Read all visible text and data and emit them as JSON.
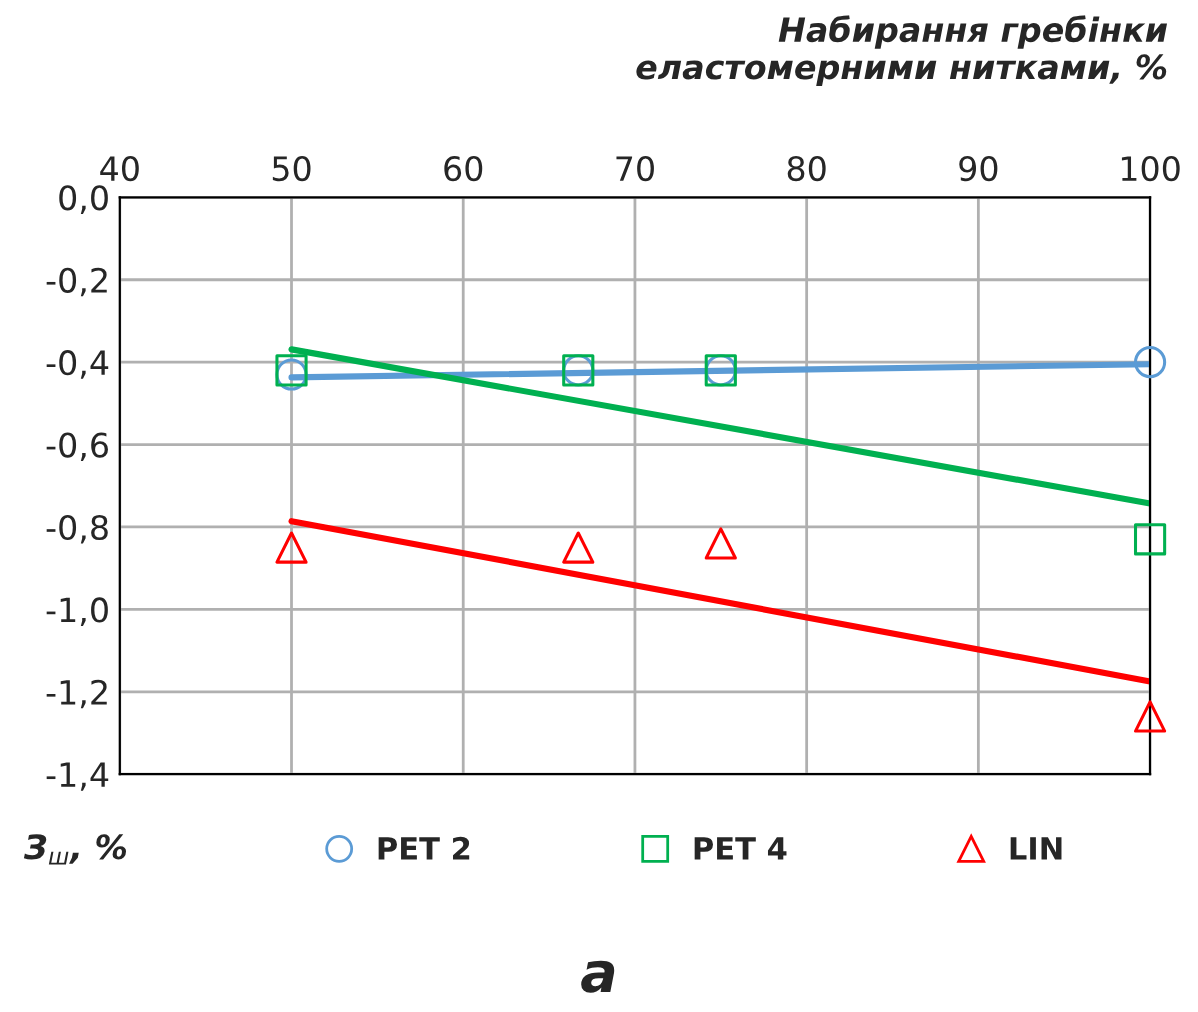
{
  "chart_data": {
    "type": "scatter",
    "xlabel": "Набирання гребінки\nеластомерними нитками, %",
    "ylabel": "З$_{ш}$, %",
    "xlim": [
      40,
      100
    ],
    "xticks": [
      40,
      50,
      60,
      70,
      80,
      90,
      100
    ],
    "ylim": [
      -1.4,
      0
    ],
    "yticks": [
      {
        "value": 0,
        "label": "0,0"
      },
      {
        "value": -0.2,
        "label": "-0,2"
      },
      {
        "value": -0.4,
        "label": "-0,4"
      },
      {
        "value": -0.6,
        "label": "-0,6"
      },
      {
        "value": -0.8,
        "label": "-0,8"
      },
      {
        "value": -1.0,
        "label": "-1,0"
      },
      {
        "value": -1.2,
        "label": "-1,2"
      },
      {
        "value": -1.4,
        "label": "-1,4"
      }
    ],
    "grid": true,
    "legend": "bottom",
    "annotations": [
      "а"
    ],
    "series": [
      {
        "name": "PET 2",
        "marker": "circle",
        "color": "#5b9bd5",
        "x": [
          50,
          66.7,
          75,
          100
        ],
        "values": [
          -0.43,
          -0.42,
          -0.42,
          -0.4
        ]
      },
      {
        "name": "PET 4",
        "marker": "square",
        "color": "#00b050",
        "x": [
          50,
          66.7,
          75,
          100
        ],
        "values": [
          -0.42,
          -0.42,
          -0.42,
          -0.83
        ]
      },
      {
        "name": "LIN",
        "marker": "triangle",
        "color": "#ff0000",
        "x": [
          50,
          66.7,
          75,
          100
        ],
        "values": [
          -0.85,
          -0.85,
          -0.84,
          -1.26
        ]
      },
      {
        "type": "line",
        "color": "#5b9bd5",
        "x": [
          50,
          100
        ],
        "values": [
          -0.437,
          -0.405
        ]
      },
      {
        "type": "line",
        "color": "#00b050",
        "x": [
          50,
          100
        ],
        "values": [
          -0.369,
          -0.743
        ]
      },
      {
        "type": "line",
        "color": "#ff0000",
        "x": [
          50,
          100
        ],
        "values": [
          -0.786,
          -1.175
        ]
      }
    ]
  }
}
